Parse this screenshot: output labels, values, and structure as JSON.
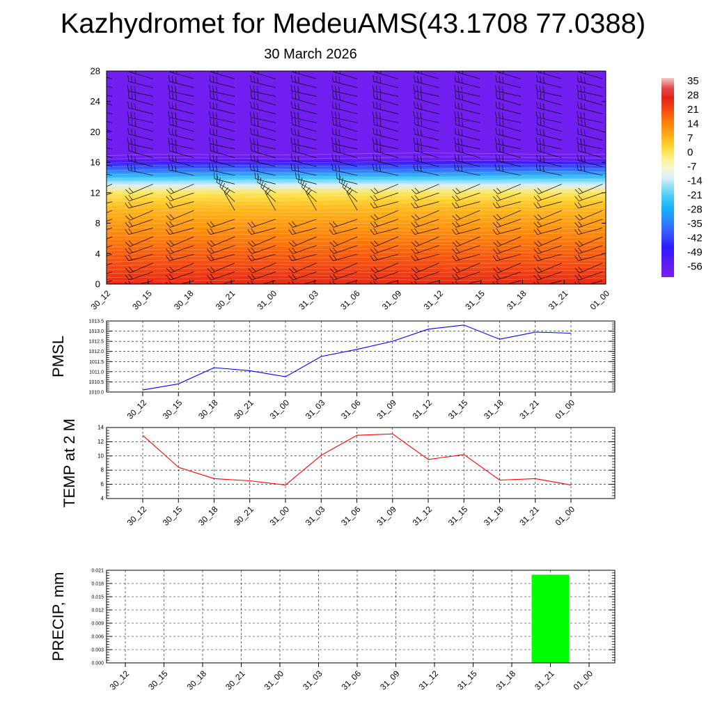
{
  "title": "Kazhydromet for MedeuAMS(43.1708 77.0388)",
  "subtitle": "30 March 2026",
  "time_labels": [
    "30_12",
    "30_15",
    "30_18",
    "30_21",
    "31_00",
    "31_03",
    "31_06",
    "31_09",
    "31_12",
    "31_15",
    "31_18",
    "31_21",
    "01_00"
  ],
  "colors": {
    "pmsl_line": "#0000ff",
    "temp_line": "#ff0000",
    "precip_bar": "#00ff00",
    "grid": "#000000"
  },
  "chart_data": [
    {
      "type": "heatmap",
      "name": "temperature-wind-cross-section",
      "x": [
        "30_12",
        "30_15",
        "30_18",
        "30_21",
        "31_00",
        "31_03",
        "31_06",
        "31_09",
        "31_12",
        "31_15",
        "31_18",
        "31_21",
        "01_00"
      ],
      "ylim": [
        0,
        28
      ],
      "yticks": [
        0,
        4,
        8,
        12,
        16,
        20,
        24,
        28
      ],
      "value_range": [
        -63,
        35
      ],
      "levels": [
        0,
        1,
        2,
        4,
        6,
        8,
        10,
        11,
        12,
        13,
        14,
        15,
        16,
        16.5,
        17,
        18,
        20,
        24,
        28
      ],
      "temperature_profile": [
        24,
        22,
        20,
        17,
        13,
        9,
        5,
        2,
        -2,
        -14,
        -25,
        -38,
        -52,
        -60,
        -61,
        -61,
        -61,
        -61,
        -61
      ],
      "wind_barbs": true,
      "colorbar_labels": [
        "35",
        "28",
        "21",
        "14",
        "7",
        "0",
        "-7",
        "-14",
        "-21",
        "-28",
        "-35",
        "-42",
        "-49",
        "-56"
      ]
    },
    {
      "type": "line",
      "name": "pmsl",
      "ylabel": "PMSL",
      "x": [
        "30_12",
        "30_15",
        "30_18",
        "30_21",
        "31_00",
        "31_03",
        "31_06",
        "31_09",
        "31_12",
        "31_15",
        "31_18",
        "31_21",
        "01_00"
      ],
      "values": [
        1010.1,
        1010.4,
        1011.2,
        1011.05,
        1010.75,
        1011.75,
        1012.1,
        1012.5,
        1013.1,
        1013.3,
        1012.6,
        1012.95,
        1012.9
      ],
      "ylim": [
        1010.0,
        1013.5
      ],
      "yticks": [
        "1010.0",
        "1010.5",
        "1011.0",
        "1011.5",
        "1012.0",
        "1012.5",
        "1013.0",
        "1013.5"
      ]
    },
    {
      "type": "line",
      "name": "temp-2m",
      "ylabel": "TEMP at 2 M",
      "x": [
        "30_12",
        "30_15",
        "30_18",
        "30_21",
        "31_00",
        "31_03",
        "31_06",
        "31_09",
        "31_12",
        "31_15",
        "31_18",
        "31_21",
        "01_00"
      ],
      "values": [
        12.9,
        8.4,
        6.8,
        6.5,
        5.9,
        10.1,
        12.9,
        13.1,
        9.5,
        10.2,
        6.6,
        6.8,
        5.9
      ],
      "ylim": [
        4,
        14
      ],
      "yticks": [
        "4",
        "6",
        "8",
        "10",
        "12",
        "14"
      ]
    },
    {
      "type": "bar",
      "name": "precip",
      "ylabel": "PRECIP, mm",
      "categories": [
        "30_12",
        "30_15",
        "30_18",
        "30_21",
        "31_00",
        "31_03",
        "31_06",
        "31_09",
        "31_12",
        "31_15",
        "31_18",
        "31_21",
        "01_00"
      ],
      "values": [
        0,
        0,
        0,
        0,
        0,
        0,
        0,
        0,
        0,
        0,
        0,
        0.02,
        0
      ],
      "ylim": [
        0,
        0.021
      ],
      "yticks": [
        "0.000",
        "0.003",
        "0.006",
        "0.009",
        "0.012",
        "0.015",
        "0.018",
        "0.021"
      ]
    }
  ]
}
